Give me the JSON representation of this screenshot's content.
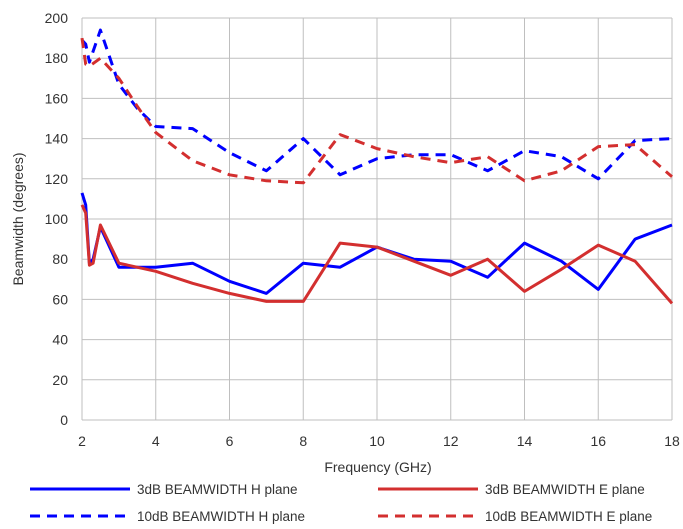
{
  "chart_data": {
    "type": "line",
    "title": "",
    "xlabel": "Frequency (GHz)",
    "ylabel": "Beamwidth (degrees)",
    "xlim": [
      2,
      18
    ],
    "ylim": [
      0,
      200
    ],
    "xticks": [
      "2",
      "4",
      "6",
      "8",
      "10",
      "12",
      "14",
      "16",
      "18"
    ],
    "yticks": [
      "0",
      "20",
      "40",
      "60",
      "80",
      "100",
      "120",
      "140",
      "160",
      "180",
      "200"
    ],
    "grid": true,
    "legend_position": "bottom",
    "series": [
      {
        "name": "3dB BEAMWIDTH H plane",
        "color": "#0000ff",
        "dash": "solid",
        "x": [
          2,
          2.1,
          2.2,
          2.3,
          2.5,
          3,
          4,
          5,
          6,
          7,
          8,
          9,
          10,
          11,
          12,
          13,
          14,
          15,
          16,
          17,
          18
        ],
        "y": [
          113,
          107,
          78,
          80,
          96,
          76,
          76,
          78,
          69,
          63,
          78,
          76,
          86,
          80,
          79,
          71,
          88,
          79,
          65,
          90,
          97
        ]
      },
      {
        "name": "3dB BEAMWIDTH E plane",
        "color": "#d32f2f",
        "dash": "solid",
        "x": [
          2,
          2.1,
          2.2,
          2.3,
          2.5,
          3,
          4,
          5,
          6,
          7,
          8,
          9,
          10,
          11,
          12,
          13,
          14,
          15,
          16,
          17,
          18
        ],
        "y": [
          107,
          103,
          77,
          78,
          97,
          78,
          74,
          68,
          63,
          59,
          59,
          88,
          86,
          79,
          72,
          80,
          64,
          75,
          87,
          79,
          58
        ]
      },
      {
        "name": "10dB BEAMWIDTH H plane",
        "color": "#0000ff",
        "dash": "dashed",
        "x": [
          2,
          2.1,
          2.2,
          2.5,
          3,
          3.5,
          4,
          5,
          6,
          7,
          8,
          9,
          10,
          11,
          12,
          13,
          14,
          15,
          16,
          17,
          18
        ],
        "y": [
          189,
          187,
          178,
          194,
          167,
          155,
          146,
          145,
          133,
          124,
          140,
          122,
          130,
          132,
          132,
          124,
          134,
          131,
          120,
          139,
          140
        ]
      },
      {
        "name": "10dB BEAMWIDTH E plane",
        "color": "#d32f2f",
        "dash": "dashed",
        "x": [
          2,
          2.1,
          2.2,
          2.5,
          3,
          3.5,
          4,
          5,
          6,
          7,
          8,
          9,
          10,
          11,
          12,
          13,
          14,
          15,
          16,
          17,
          18
        ],
        "y": [
          190,
          177,
          176,
          180,
          170,
          156,
          143,
          129,
          122,
          119,
          118,
          142,
          135,
          131,
          128,
          131,
          119,
          124,
          136,
          137,
          121
        ]
      }
    ]
  }
}
